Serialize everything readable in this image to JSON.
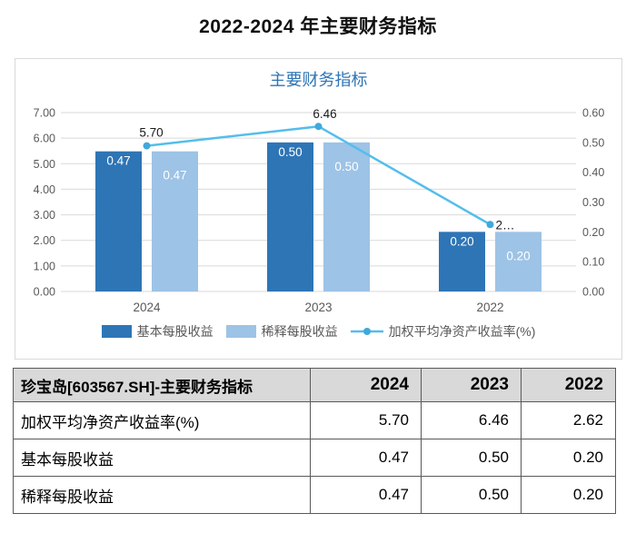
{
  "page_title": "2022-2024 年主要财务指标",
  "chart_data": {
    "type": "bar",
    "title": "主要财务指标",
    "title_color": "#2e74b5",
    "categories": [
      "2024",
      "2023",
      "2022"
    ],
    "series": [
      {
        "name": "基本每股收益",
        "kind": "bar",
        "axis": "right",
        "values": [
          0.47,
          0.5,
          0.2
        ],
        "labels": [
          "0.47",
          "0.50",
          "0.20"
        ],
        "color": "#2e75b6",
        "label_color": "#ffffff"
      },
      {
        "name": "稀释每股收益",
        "kind": "bar",
        "axis": "right",
        "values": [
          0.47,
          0.5,
          0.2
        ],
        "labels": [
          "0.47",
          "0.50",
          "0.20"
        ],
        "color": "#9dc3e6",
        "label_color": "#ffffff"
      },
      {
        "name": "加权平均净资产收益率(%)",
        "kind": "line",
        "axis": "left",
        "values": [
          5.7,
          6.46,
          2.62
        ],
        "labels": [
          "5.70",
          "6.46",
          "2…"
        ],
        "color": "#53beeb",
        "marker_color": "#3fa9dc",
        "label_color": "#1a1a1a"
      }
    ],
    "left_axis": {
      "min": 0,
      "max": 7,
      "ticks": [
        "0.00",
        "1.00",
        "2.00",
        "3.00",
        "4.00",
        "5.00",
        "6.00",
        "7.00"
      ]
    },
    "right_axis": {
      "min": 0,
      "max": 0.6,
      "ticks": [
        "0.00",
        "0.10",
        "0.20",
        "0.30",
        "0.40",
        "0.50",
        "0.60"
      ]
    },
    "grid": true,
    "grid_color": "#d9d9d9",
    "axis_text_color": "#595959",
    "legend_position": "bottom"
  },
  "table": {
    "columns": [
      "珍宝岛[603567.SH]-主要财务指标",
      "2024",
      "2023",
      "2022"
    ],
    "rows": [
      [
        "加权平均净资产收益率(%)",
        "5.70",
        "6.46",
        "2.62"
      ],
      [
        "基本每股收益",
        "0.47",
        "0.50",
        "0.20"
      ],
      [
        "稀释每股收益",
        "0.47",
        "0.50",
        "0.20"
      ]
    ],
    "header_bg": "#d9d9d9",
    "border_color": "#595959"
  }
}
